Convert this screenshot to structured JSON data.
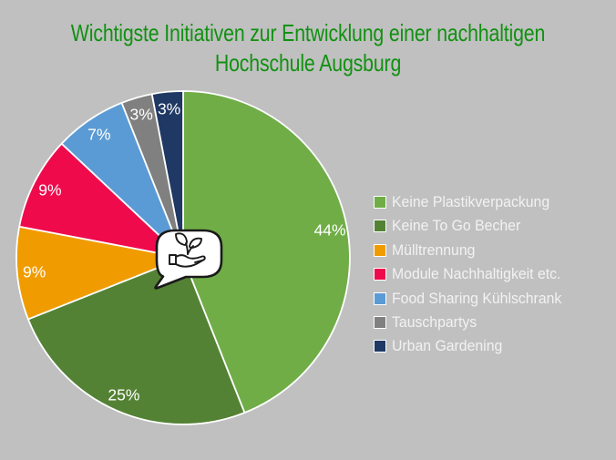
{
  "background_color": "#C0C0C0",
  "title": {
    "line1": "Wichtigste Initiativen zur Entwicklung einer nachhaltigen",
    "line2": "Hochschule Augsburg",
    "color": "#119111"
  },
  "chart_data": {
    "type": "pie",
    "title": "Wichtigste Initiativen zur Entwicklung einer nachhaltigen Hochschule Augsburg",
    "unit": "percent",
    "start_angle_deg": 0,
    "direction": "clockwise",
    "slice_border_color": "#FFFFFF",
    "data_label_color": "#FFFFFF",
    "legend_position": "right",
    "slices": [
      {
        "label": "Keine Plastikverpackung",
        "value": 44,
        "display_label": "44%",
        "color": "#70AD47"
      },
      {
        "label": "Keine To Go Becher",
        "value": 25,
        "display_label": "25%",
        "color": "#548235"
      },
      {
        "label": "Mülltrennung",
        "value": 9,
        "display_label": "9%",
        "color": "#F09C01"
      },
      {
        "label": "Module Nachhaltigkeit etc.",
        "value": 9,
        "display_label": "9%",
        "color": "#EF0A4C"
      },
      {
        "label": "Food Sharing Kühlschrank",
        "value": 7,
        "display_label": "7%",
        "color": "#5B9BD5"
      },
      {
        "label": "Tauschpartys",
        "value": 3,
        "display_label": "3%",
        "color": "#808080"
      },
      {
        "label": "Urban Gardening",
        "value": 3,
        "display_label": "3%",
        "color": "#1F3864"
      }
    ]
  },
  "legend": {
    "text_color": "#F2F2F2"
  },
  "center_icon": {
    "name": "hand-holding-plant-speech-bubble",
    "bubble_fill": "#FFFFFF",
    "bubble_stroke": "#1A1A1A"
  }
}
